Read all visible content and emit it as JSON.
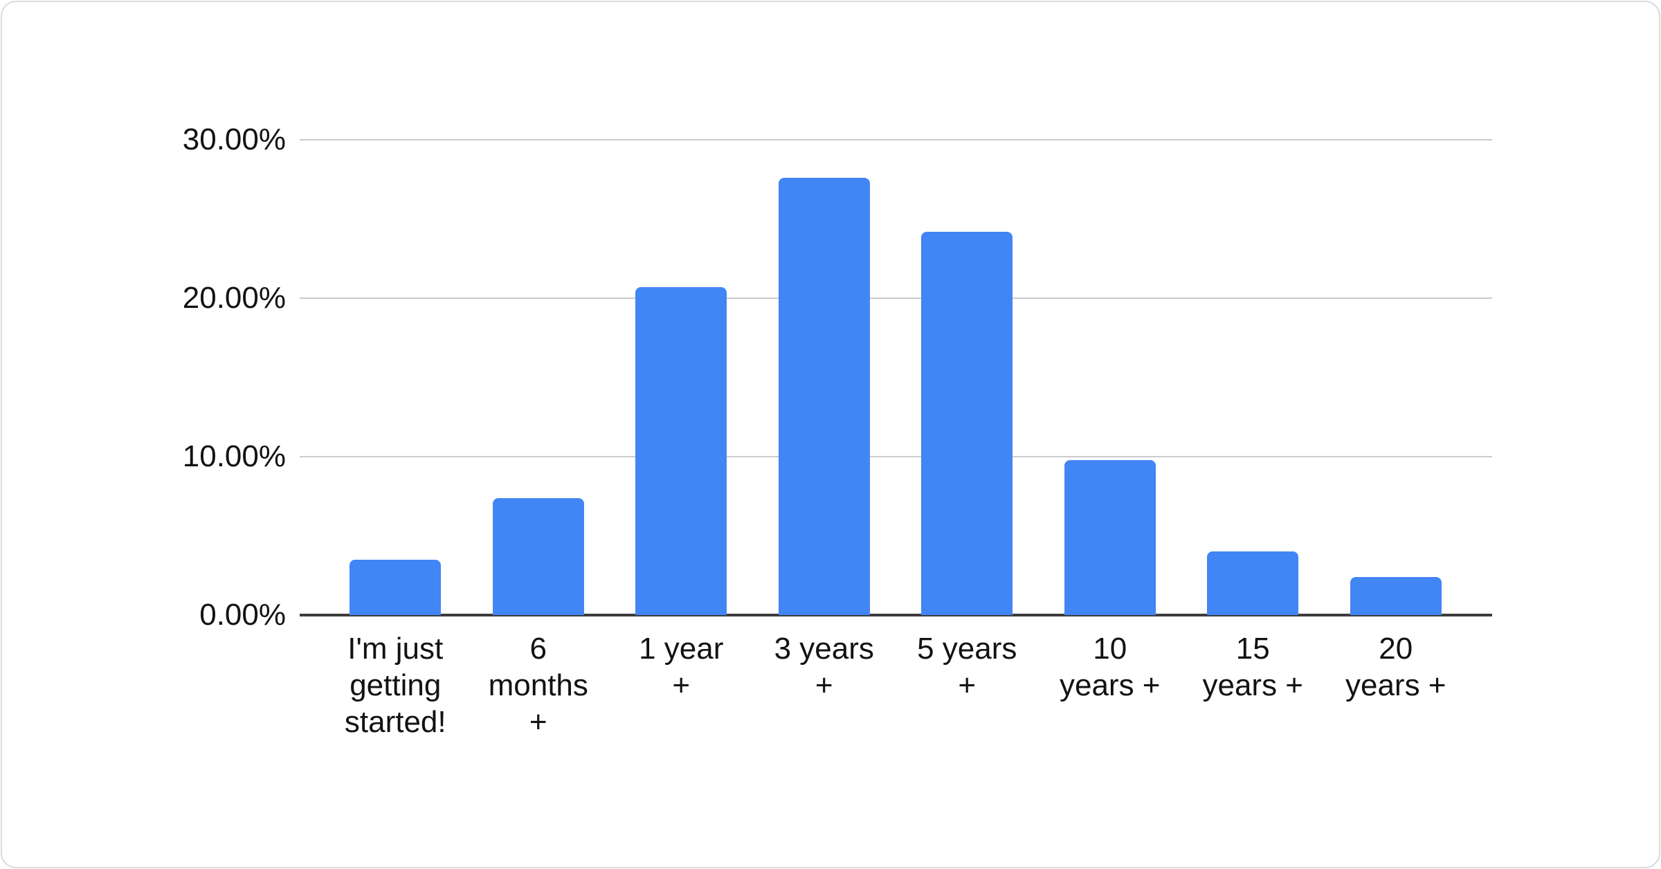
{
  "chart_data": {
    "type": "bar",
    "title": "",
    "categories": [
      "I'm just getting started!",
      "6 months +",
      "1 year +",
      "3 years +",
      "5 years +",
      "10 years +",
      "15 years +",
      "20 years +"
    ],
    "values": [
      3.5,
      7.4,
      20.7,
      27.6,
      24.2,
      9.8,
      4.0,
      2.4
    ],
    "value_unit": "%",
    "xlabel": "",
    "ylabel": "",
    "ylim": [
      0,
      30
    ],
    "yticks": [
      {
        "value": 0,
        "label": "0.00%"
      },
      {
        "value": 10,
        "label": "10.00%"
      },
      {
        "value": 20,
        "label": "20.00%"
      },
      {
        "value": 30,
        "label": "30.00%"
      }
    ],
    "xtick_display_lines": [
      "I'm just\ngetting\nstarted!",
      "6\nmonths\n+",
      "1 year\n+",
      "3 years\n+",
      "5 years\n+",
      "10\nyears +",
      "15\nyears +",
      "20\nyears +"
    ],
    "grid": "horizontal-on",
    "legend": "none",
    "bar_color": "#4285f4"
  },
  "colors": {
    "bar": "#4285f4",
    "gridline": "#cccccc",
    "baseline": "#3c3c3c",
    "axis_label": "#121212",
    "card_background": "#ffffff",
    "card_border": "#d9dade"
  }
}
